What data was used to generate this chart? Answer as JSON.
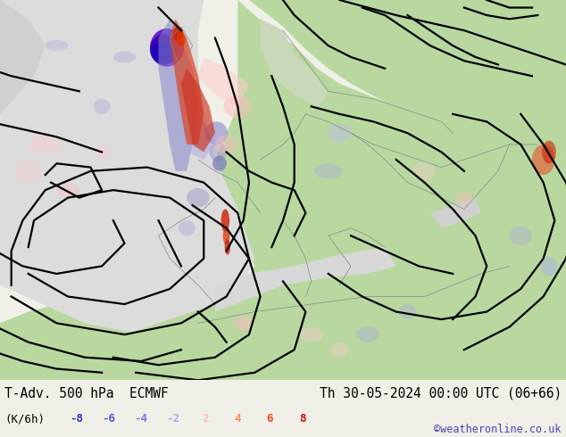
{
  "title_left": "T-Adv. 500 hPa  ECMWF",
  "title_right": "Th 30-05-2024 00:00 UTC (06+66)",
  "subtitle_left": "(K/6h)",
  "colorbar_labels": [
    "-8",
    "-6",
    "-4",
    "-2",
    "2",
    "4",
    "6",
    "8"
  ],
  "colorbar_colors_neg": [
    "#3333bb",
    "#5555cc",
    "#7777dd",
    "#aaaaee"
  ],
  "colorbar_colors_pos": [
    "#ffbbbb",
    "#ff8866",
    "#ee4422",
    "#cc1111"
  ],
  "copyright": "©weatheronline.co.uk",
  "bg_color": "#f0f0e8",
  "ocean_color": "#e8e8e8",
  "land_color_green": "#b8d8a0",
  "land_color_light": "#e0e8d8",
  "separator_color": "#aaaaaa",
  "text_color": "#000000",
  "title_fontsize": 10.5,
  "label_fontsize": 9,
  "contour_lw": 1.6
}
